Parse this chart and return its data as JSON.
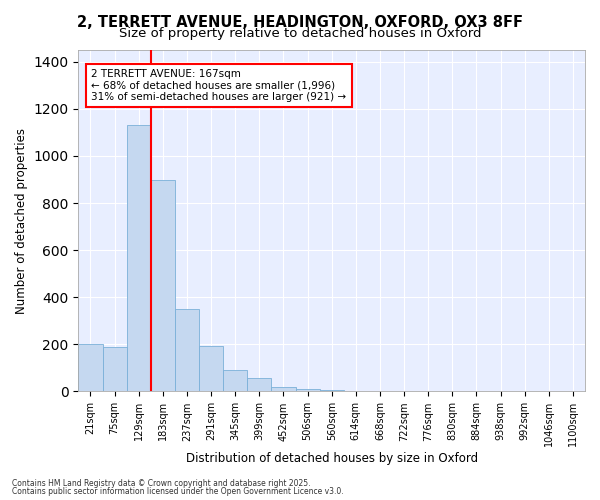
{
  "title_line1": "2, TERRETT AVENUE, HEADINGTON, OXFORD, OX3 8FF",
  "title_line2": "Size of property relative to detached houses in Oxford",
  "xlabel": "Distribution of detached houses by size in Oxford",
  "ylabel": "Number of detached properties",
  "bar_labels": [
    "21sqm",
    "75sqm",
    "129sqm",
    "183sqm",
    "237sqm",
    "291sqm",
    "345sqm",
    "399sqm",
    "452sqm",
    "506sqm",
    "560sqm",
    "614sqm",
    "668sqm",
    "722sqm",
    "776sqm",
    "830sqm",
    "884sqm",
    "938sqm",
    "992sqm",
    "1046sqm",
    "1100sqm"
  ],
  "bar_values": [
    200,
    190,
    1130,
    900,
    350,
    195,
    90,
    58,
    20,
    12,
    8,
    3,
    2,
    2,
    1,
    0,
    0,
    0,
    0,
    0,
    0
  ],
  "bar_color": "#c5d8f0",
  "bar_edge_color": "#7ab0d8",
  "red_line_x": 3.0,
  "ylim": [
    0,
    1450
  ],
  "annotation_text": "2 TERRETT AVENUE: 167sqm\n← 68% of detached houses are smaller (1,996)\n31% of semi-detached houses are larger (921) →",
  "annotation_box_color": "white",
  "annotation_box_edge": "red",
  "footer_line1": "Contains HM Land Registry data © Crown copyright and database right 2025.",
  "footer_line2": "Contains public sector information licensed under the Open Government Licence v3.0.",
  "bg_color": "#ffffff",
  "plot_bg_color": "#e8eeff",
  "grid_color": "white",
  "title_fontsize": 10.5,
  "subtitle_fontsize": 9.5,
  "tick_fontsize": 7,
  "ylabel_fontsize": 8.5,
  "xlabel_fontsize": 8.5,
  "annotation_fontsize": 7.5
}
